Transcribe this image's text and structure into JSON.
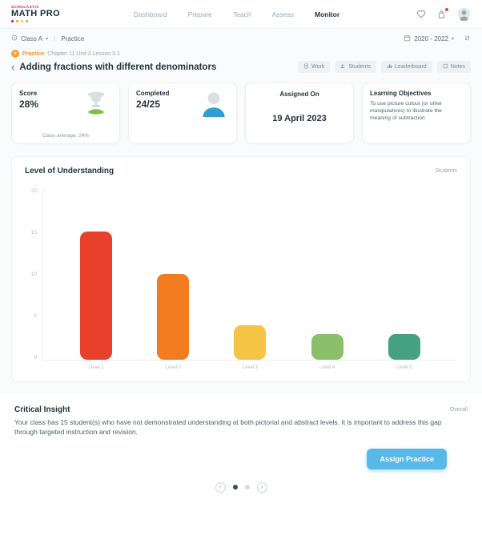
{
  "header": {
    "brand_top": "SCHOLASTIC",
    "brand_name": "MATH PRO",
    "brand_dot_colors": [
      "#e4002b",
      "#f7941d",
      "#ffd200",
      "#8dc63f"
    ],
    "nav": [
      {
        "label": "Dashboard",
        "active": false
      },
      {
        "label": "Prepare",
        "active": false
      },
      {
        "label": "Teach",
        "active": false
      },
      {
        "label": "Assess",
        "active": false
      },
      {
        "label": "Monitor",
        "active": true
      }
    ]
  },
  "toolbar": {
    "class_name": "Class A",
    "breadcrumb_section": "Practice",
    "term": "2020 - 2022"
  },
  "lesson": {
    "badge_label": "Practice",
    "path": "Chapter 11 Unit 3 Lesson 3.1",
    "title": "Adding fractions with different denominators",
    "tabs": [
      {
        "label": "Work"
      },
      {
        "label": "Students"
      },
      {
        "label": "Leaderboard"
      },
      {
        "label": "Notes"
      }
    ]
  },
  "cards": {
    "score_label": "Score",
    "score_value": "28%",
    "score_footnote": "Class average: 24%",
    "completed_label": "Completed",
    "completed_value": "24/25",
    "assigned_label": "Assigned On",
    "assigned_value": "19 April 2023",
    "objectives_label": "Learning Objectives",
    "objectives_text": "To use picture cutout (or other manipulatives) to illustrate the meaning of subtraction"
  },
  "chart_data": {
    "type": "bar",
    "title": "Level of Understanding",
    "unit_label": "Students",
    "categories": [
      "Level 1",
      "Level 2",
      "Level 3",
      "Level 4",
      "Level 5"
    ],
    "values": [
      15,
      10,
      4,
      3,
      3
    ],
    "colors": [
      "#e8402a",
      "#f47c20",
      "#f6c445",
      "#8bbf6a",
      "#46a183"
    ],
    "ylim": [
      0,
      20
    ],
    "yticks": [
      0,
      5,
      10,
      15,
      20
    ],
    "grid": false,
    "legend_position": "top-right"
  },
  "insight": {
    "title": "Critical Insight",
    "scope_label": "Overall",
    "text": "Your class has 15 student(s) who have not demonstrated understanding at both pictorial and abstract levels. It is important to address this gap through targeted instruction and revision.",
    "action_label": "Assign Practice"
  },
  "icons": {
    "caret_down": "▾",
    "slash": "/",
    "back_chevron": "‹",
    "star": "★",
    "prev_arrow": "‹",
    "next_arrow": "›"
  },
  "colors": {
    "accent_blue": "#58b8e8",
    "brand_red": "#e4002b"
  }
}
